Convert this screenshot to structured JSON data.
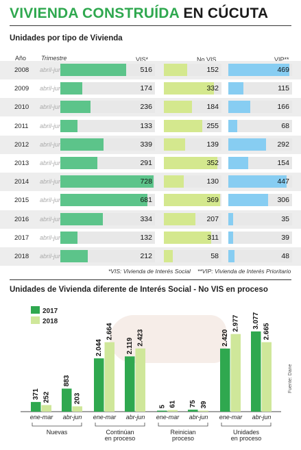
{
  "title_part1": "VIVIENDA CONSTRUÍDA",
  "title_part2": "EN CÚCUTA",
  "section1_title": "Unidades por tipo de Vivienda",
  "col_year": "Año",
  "col_trimestre": "Trimestre",
  "col_vis": "VIS*",
  "col_novis": "No VIS",
  "col_vip": "VIP**",
  "footnote_vis": "*VIS: Vivienda de Interés Social",
  "footnote_vip": "**VIP: Vivienda de Interés Prioritario",
  "section2_title": "Unidades de Vivienda diferente de Interés Social - No VIS en proceso",
  "legend_2017": "2017",
  "legend_2018": "2018",
  "source": "Fuente: Dane",
  "colors": {
    "vis": "#5cc48a",
    "novis": "#d4e88e",
    "vip": "#87cdf2",
    "s2017": "#2fa84f",
    "s2018": "#cfe79a",
    "title_green": "#2fa84f"
  },
  "chart_data": [
    {
      "type": "bar",
      "title": "Unidades por tipo de Vivienda",
      "categories": [
        "2008",
        "2009",
        "2010",
        "2011",
        "2012",
        "2013",
        "2014",
        "2015",
        "2016",
        "2017",
        "2018"
      ],
      "period": "abril-junio",
      "series": [
        {
          "name": "VIS*",
          "values": [
            516,
            174,
            236,
            133,
            339,
            291,
            728,
            681,
            334,
            132,
            212
          ]
        },
        {
          "name": "No VIS",
          "values": [
            152,
            332,
            184,
            255,
            139,
            352,
            130,
            369,
            207,
            311,
            58
          ]
        },
        {
          "name": "VIP**",
          "values": [
            469,
            115,
            166,
            68,
            292,
            154,
            447,
            306,
            35,
            39,
            48
          ]
        }
      ]
    },
    {
      "type": "bar",
      "title": "Unidades de Vivienda diferente de Interés Social - No VIS en proceso",
      "groups": [
        {
          "label": "Nuevas",
          "periods": [
            {
              "label": "ene-mar",
              "s2017": 371,
              "s2018": 252,
              "t2017": "371",
              "t2018": "252"
            },
            {
              "label": "abr-jun",
              "s2017": 883,
              "s2018": 203,
              "t2017": "883",
              "t2018": "203"
            }
          ]
        },
        {
          "label": "Continúan en proceso",
          "periods": [
            {
              "label": "ene-mar",
              "s2017": 2044,
              "s2018": 2664,
              "t2017": "2.044",
              "t2018": "2.664"
            },
            {
              "label": "abr-jun",
              "s2017": 2119,
              "s2018": 2423,
              "t2017": "2.119",
              "t2018": "2.423"
            }
          ]
        },
        {
          "label": "Reinician proceso",
          "periods": [
            {
              "label": "ene-mar",
              "s2017": 5,
              "s2018": 61,
              "t2017": "5",
              "t2018": "61"
            },
            {
              "label": "abr-jun",
              "s2017": 75,
              "s2018": 39,
              "t2017": "75",
              "t2018": "39"
            }
          ]
        },
        {
          "label": "Unidades en proceso",
          "periods": [
            {
              "label": "ene-mar",
              "s2017": 2420,
              "s2018": 2977,
              "t2017": "2.420",
              "t2018": "2.977"
            },
            {
              "label": "abr-jun",
              "s2017": 3077,
              "s2018": 2665,
              "t2017": "3.077",
              "t2018": "2.665"
            }
          ]
        }
      ],
      "series": [
        {
          "name": "2017"
        },
        {
          "name": "2018"
        }
      ]
    }
  ]
}
